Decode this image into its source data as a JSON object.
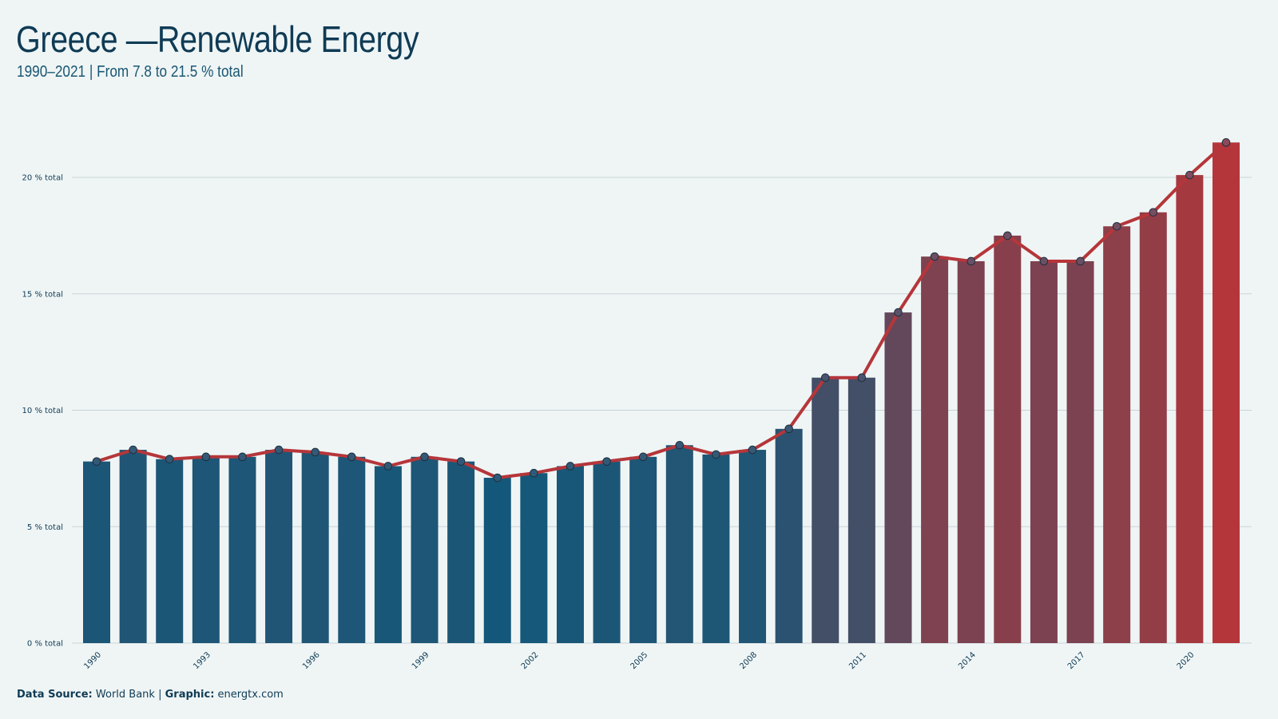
{
  "header": {
    "title": "Greece —Renewable Energy",
    "subtitle": "1990–2021 | From 7.8 to 21.5 % total"
  },
  "caption": {
    "source_label": "Data Source:",
    "source_value": "World Bank",
    "separator": "|",
    "graphic_label": "Graphic:",
    "graphic_value": "energtx.com"
  },
  "colors": {
    "background": "#eff5f5",
    "bar_low": "#13587a",
    "bar_high": "#b5363a",
    "line": "#b5363a",
    "marker_fill": "#2e5a78",
    "text": "#0f3b55",
    "gridline": "#c9d4d8"
  },
  "chart_data": {
    "type": "bar",
    "overlay": "line-with-markers",
    "x": [
      1990,
      1991,
      1992,
      1993,
      1994,
      1995,
      1996,
      1997,
      1998,
      1999,
      2000,
      2001,
      2002,
      2003,
      2004,
      2005,
      2006,
      2007,
      2008,
      2009,
      2010,
      2011,
      2012,
      2013,
      2014,
      2015,
      2016,
      2017,
      2018,
      2019,
      2020,
      2021
    ],
    "values": [
      7.8,
      8.3,
      7.9,
      8.0,
      8.0,
      8.3,
      8.2,
      8.0,
      7.6,
      8.0,
      7.8,
      7.1,
      7.3,
      7.6,
      7.8,
      8.0,
      8.5,
      8.1,
      8.3,
      9.2,
      11.4,
      11.4,
      14.2,
      16.6,
      16.4,
      17.5,
      16.4,
      16.4,
      17.9,
      18.5,
      20.1,
      21.5
    ],
    "x_tick_labels": [
      "1990",
      "1993",
      "1996",
      "1999",
      "2002",
      "2005",
      "2008",
      "2011",
      "2014",
      "2017",
      "2020"
    ],
    "y_ticks": [
      0,
      5,
      10,
      15,
      20
    ],
    "y_tick_labels": [
      "0 % total",
      "5 % total",
      "10 % total",
      "15 % total",
      "20 % total"
    ],
    "ylim": [
      0,
      22.3
    ],
    "grid": true,
    "legend": "none"
  }
}
